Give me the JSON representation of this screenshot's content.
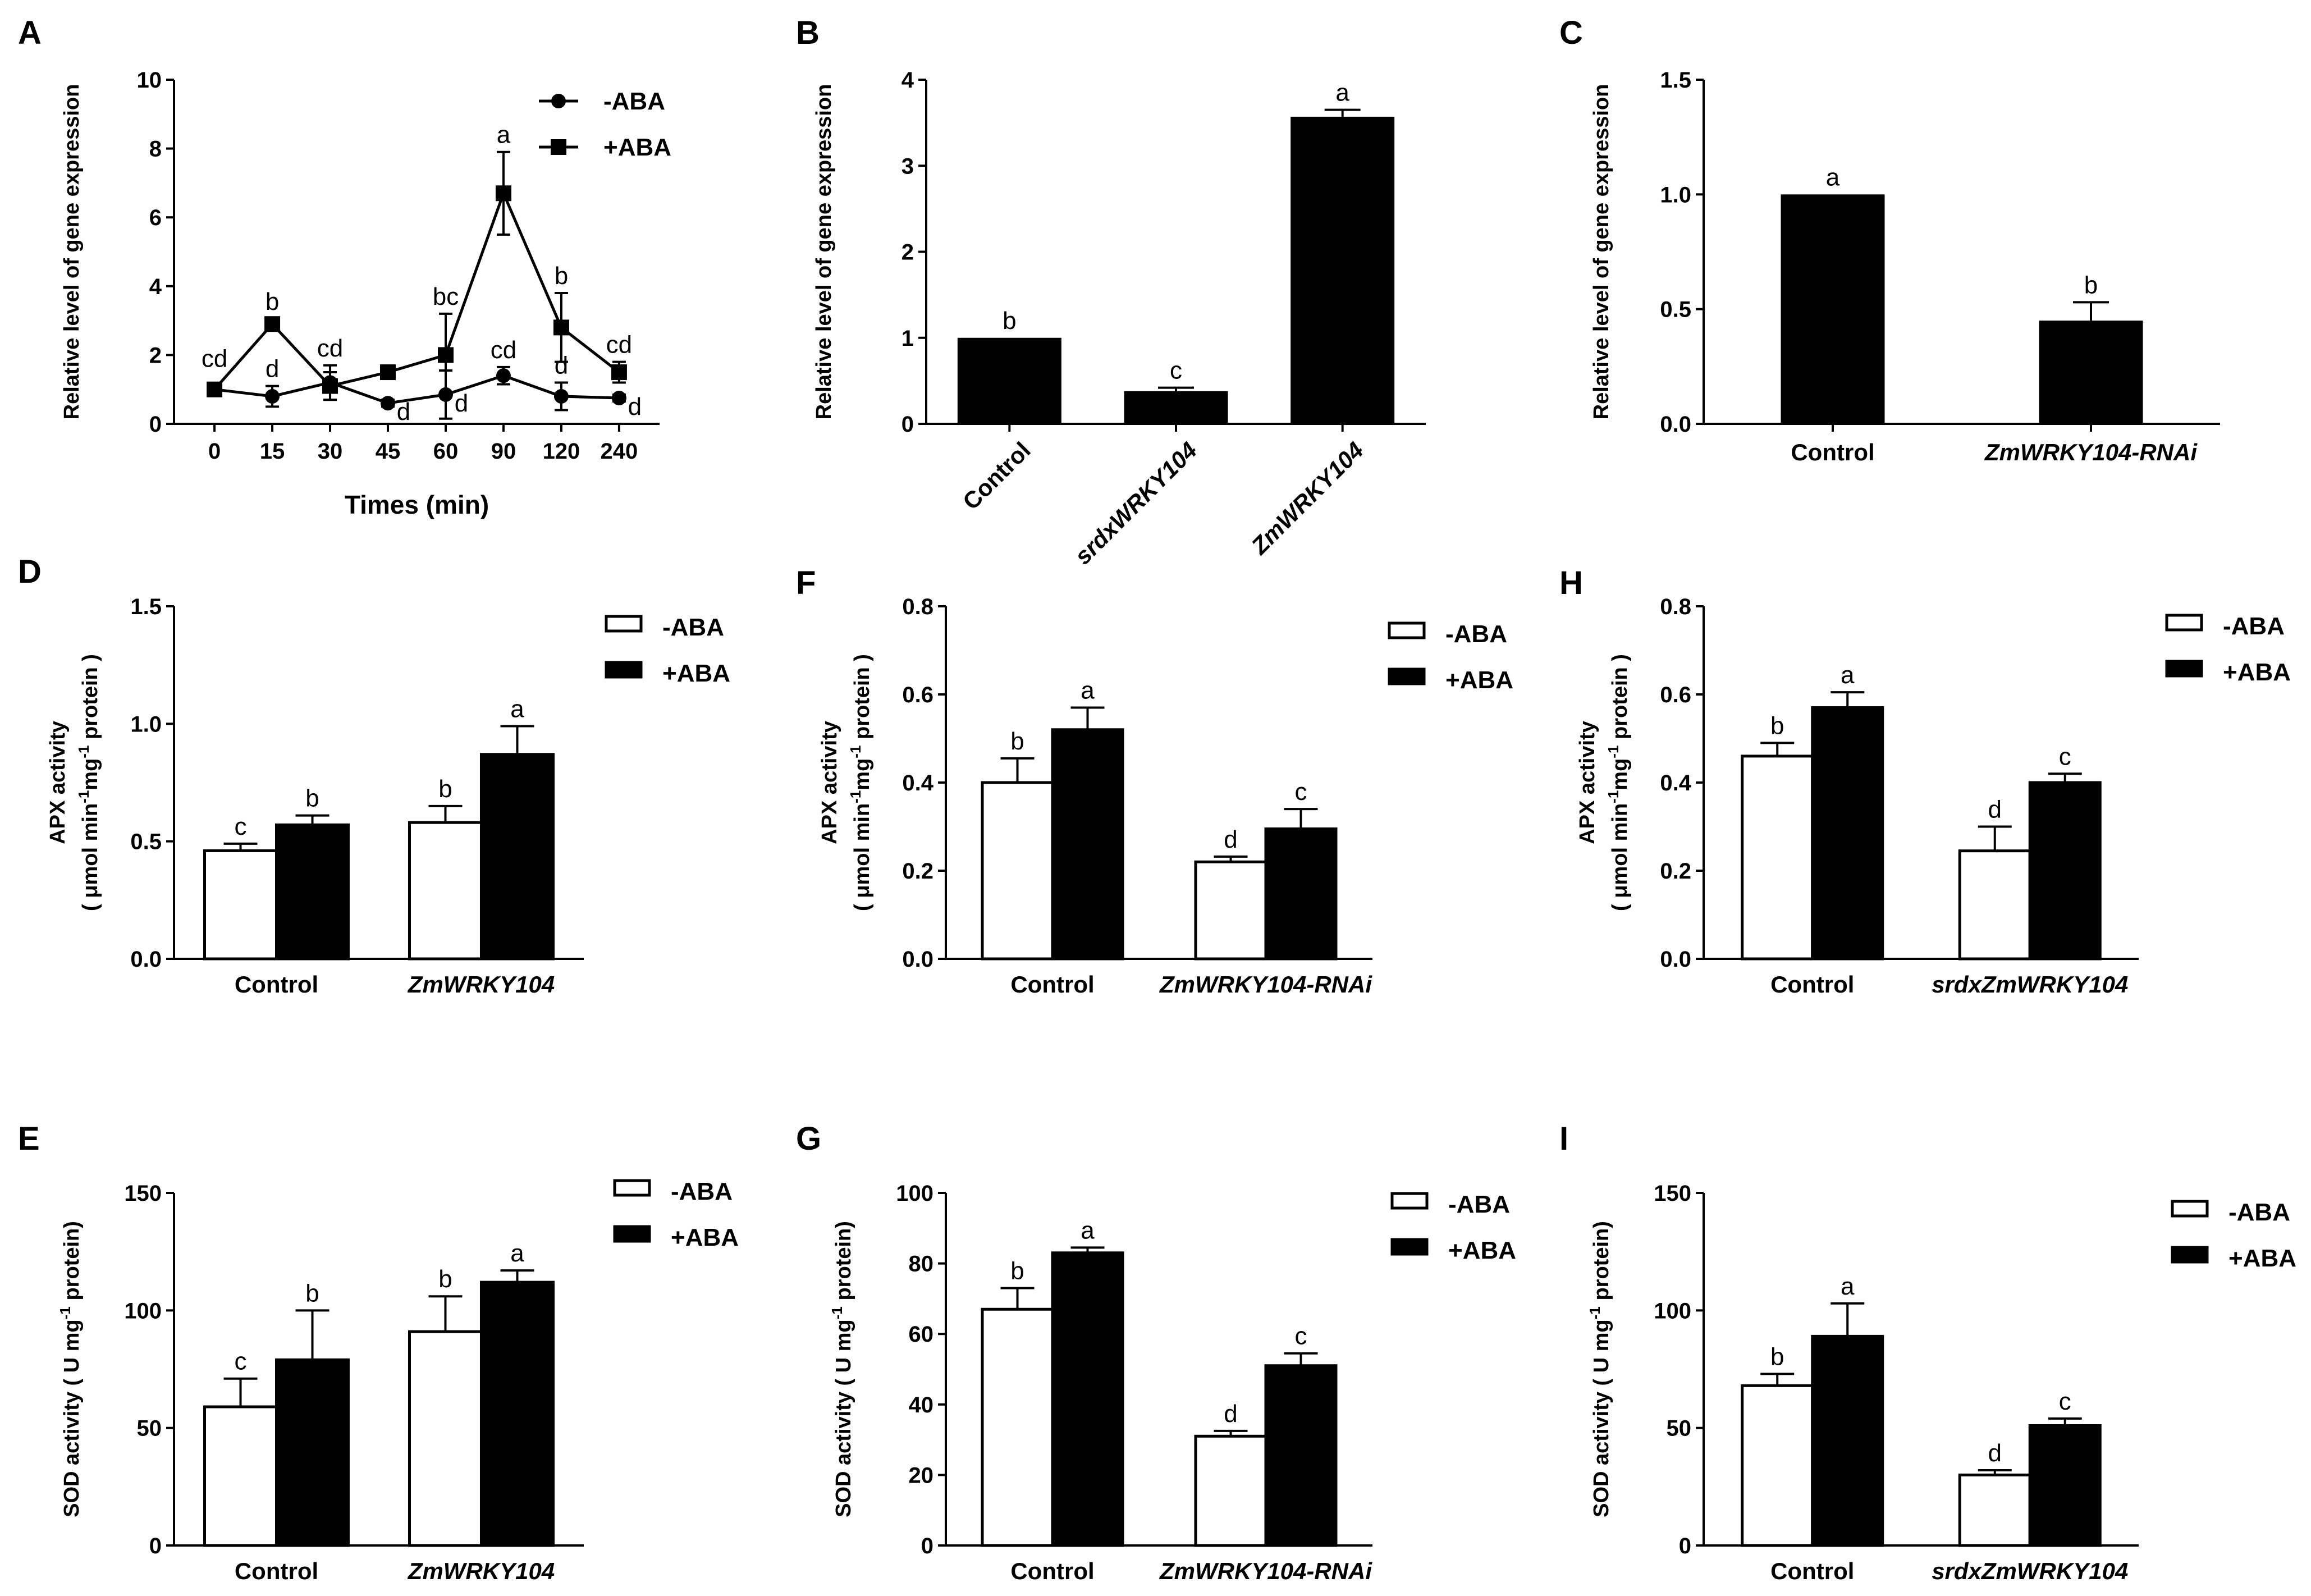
{
  "chart_data": [
    {
      "panel": "A",
      "type": "line",
      "xlabel": "Times (min)",
      "ylabel": "Relative level of gene expression",
      "categories": [
        "0",
        "15",
        "30",
        "45",
        "60",
        "90",
        "120",
        "240"
      ],
      "ylim": [
        0,
        10
      ],
      "yticks": [
        "0",
        "2",
        "4",
        "6",
        "8",
        "10"
      ],
      "series": [
        {
          "name": "-ABA",
          "marker": "circle",
          "values": [
            1.0,
            0.8,
            1.2,
            0.6,
            0.85,
            1.4,
            0.8,
            0.75
          ],
          "errors": [
            0,
            0.3,
            0.5,
            0.1,
            0.7,
            0.25,
            0.4,
            0.1
          ],
          "labels": [
            "cd",
            "d",
            "cd",
            "d",
            "d",
            "cd",
            "d",
            "d"
          ]
        },
        {
          "name": "+ABA",
          "marker": "square",
          "values": [
            1.0,
            2.9,
            1.1,
            1.5,
            2.0,
            6.7,
            2.8,
            1.5
          ],
          "errors": [
            0,
            0.15,
            0.4,
            0.1,
            1.2,
            1.2,
            1.0,
            0.3
          ],
          "labels": [
            "",
            "b",
            "",
            "",
            "bc",
            "a",
            "b",
            "cd"
          ]
        }
      ]
    },
    {
      "panel": "B",
      "type": "bar",
      "ylabel": "Relative level of gene expression",
      "categories": [
        "Control",
        "srdxWRKY104",
        "ZmWRKY104"
      ],
      "ylim": [
        0,
        4
      ],
      "yticks": [
        "0",
        "1",
        "2",
        "3",
        "4"
      ],
      "values": [
        1.0,
        0.38,
        3.57
      ],
      "errors": [
        0,
        0.04,
        0.08
      ],
      "labels": [
        "b",
        "c",
        "a"
      ]
    },
    {
      "panel": "C",
      "type": "bar",
      "ylabel": "Relative level of gene expression",
      "categories": [
        "Control",
        "ZmWRKY104-RNAi"
      ],
      "ylim": [
        0,
        1.5
      ],
      "yticks": [
        "0.0",
        "0.5",
        "1.0",
        "1.5"
      ],
      "values": [
        1.0,
        0.45
      ],
      "errors": [
        0,
        0.08
      ],
      "labels": [
        "a",
        "b"
      ]
    },
    {
      "panel": "D",
      "type": "bar",
      "ylabel_lines": [
        "APX activity",
        "( μmol min⁻¹mg⁻¹ protein )"
      ],
      "categories": [
        "Control",
        "ZmWRKY104"
      ],
      "ylim": [
        0,
        1.5
      ],
      "yticks": [
        "0.0",
        "0.5",
        "1.0",
        "1.5"
      ],
      "series": [
        {
          "name": "-ABA",
          "values": [
            0.46,
            0.58
          ],
          "errors": [
            0.03,
            0.07
          ],
          "labels": [
            "c",
            "b"
          ]
        },
        {
          "name": "+ABA",
          "values": [
            0.57,
            0.87
          ],
          "errors": [
            0.04,
            0.12
          ],
          "labels": [
            "b",
            "a"
          ]
        }
      ]
    },
    {
      "panel": "F",
      "type": "bar",
      "ylabel_lines": [
        "APX activity",
        "( μmol min⁻¹mg⁻¹ protein )"
      ],
      "categories": [
        "Control",
        "ZmWRKY104-RNAi"
      ],
      "ylim": [
        0,
        0.8
      ],
      "yticks": [
        "0.0",
        "0.2",
        "0.4",
        "0.6",
        "0.8"
      ],
      "series": [
        {
          "name": "-ABA",
          "values": [
            0.4,
            0.22
          ],
          "errors": [
            0.055,
            0.012
          ],
          "labels": [
            "b",
            "d"
          ]
        },
        {
          "name": "+ABA",
          "values": [
            0.52,
            0.295
          ],
          "errors": [
            0.05,
            0.045
          ],
          "labels": [
            "a",
            "c"
          ]
        }
      ]
    },
    {
      "panel": "H",
      "type": "bar",
      "ylabel_lines": [
        "APX activity",
        "( μmol min⁻¹mg⁻¹ protein )"
      ],
      "categories": [
        "Control",
        "srdxZmWRKY104"
      ],
      "ylim": [
        0,
        0.8
      ],
      "yticks": [
        "0.0",
        "0.2",
        "0.4",
        "0.6",
        "0.8"
      ],
      "series": [
        {
          "name": "-ABA",
          "values": [
            0.46,
            0.245
          ],
          "errors": [
            0.03,
            0.055
          ],
          "labels": [
            "b",
            "d"
          ]
        },
        {
          "name": "+ABA",
          "values": [
            0.57,
            0.4
          ],
          "errors": [
            0.035,
            0.02
          ],
          "labels": [
            "a",
            "c"
          ]
        }
      ]
    },
    {
      "panel": "E",
      "type": "bar",
      "ylabel": "SOD activity ( U mg⁻¹ protein)",
      "categories": [
        "Control",
        "ZmWRKY104"
      ],
      "ylim": [
        0,
        150
      ],
      "yticks": [
        "0",
        "50",
        "100",
        "150"
      ],
      "series": [
        {
          "name": "-ABA",
          "values": [
            59,
            91
          ],
          "errors": [
            12,
            15
          ],
          "labels": [
            "c",
            "b"
          ]
        },
        {
          "name": "+ABA",
          "values": [
            79,
            112
          ],
          "errors": [
            21,
            5
          ],
          "labels": [
            "b",
            "a"
          ]
        }
      ]
    },
    {
      "panel": "G",
      "type": "bar",
      "ylabel": "SOD activity ( U mg⁻¹ protein)",
      "categories": [
        "Control",
        "ZmWRKY104-RNAi"
      ],
      "ylim": [
        0,
        100
      ],
      "yticks": [
        "0",
        "20",
        "40",
        "60",
        "80",
        "100"
      ],
      "series": [
        {
          "name": "-ABA",
          "values": [
            67,
            31
          ],
          "errors": [
            6,
            1.5
          ],
          "labels": [
            "b",
            "d"
          ]
        },
        {
          "name": "+ABA",
          "values": [
            83,
            51
          ],
          "errors": [
            1.5,
            3.5
          ],
          "labels": [
            "a",
            "c"
          ]
        }
      ]
    },
    {
      "panel": "I",
      "type": "bar",
      "ylabel": "SOD activity ( U mg⁻¹ protein)",
      "categories": [
        "Control",
        "srdxZmWRKY104"
      ],
      "ylim": [
        0,
        150
      ],
      "yticks": [
        "0",
        "50",
        "100",
        "150"
      ],
      "series": [
        {
          "name": "-ABA",
          "values": [
            68,
            30
          ],
          "errors": [
            5,
            2
          ],
          "labels": [
            "b",
            "d"
          ]
        },
        {
          "name": "+ABA",
          "values": [
            89,
            51
          ],
          "errors": [
            14,
            3
          ],
          "labels": [
            "a",
            "c"
          ]
        }
      ]
    }
  ]
}
